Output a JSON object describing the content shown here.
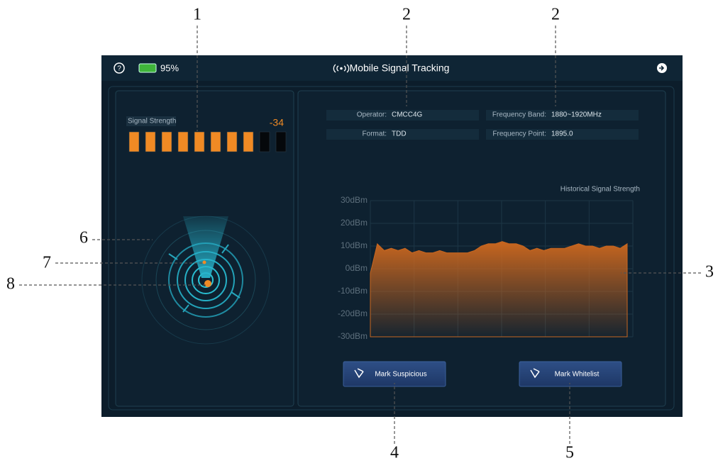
{
  "callouts": [
    "1",
    "2",
    "2",
    "6",
    "7",
    "8",
    "3",
    "4",
    "5"
  ],
  "header": {
    "battery": "95%",
    "title": "Mobile Signal Tracking"
  },
  "signal": {
    "label": "Signal Strength",
    "value": -34,
    "bars_filled": 8,
    "bars_total": 10
  },
  "info": [
    {
      "label": "Operator:",
      "value": "CMCC4G"
    },
    {
      "label": "Frequency Band:",
      "value": "1880~1920MHz"
    },
    {
      "label": "Format:",
      "value": "TDD"
    },
    {
      "label": "Frequency Point:",
      "value": "1895.0"
    }
  ],
  "chart_data": {
    "type": "area",
    "title": "Historical Signal Strength",
    "values": [
      -2,
      11,
      8,
      9,
      8,
      9,
      7,
      8,
      7,
      7,
      8,
      7,
      7,
      7,
      7,
      8,
      10,
      11,
      11,
      12,
      11,
      11,
      10,
      8,
      9,
      8,
      9,
      9,
      9,
      10,
      11,
      10,
      10,
      9,
      10,
      10,
      9,
      11
    ],
    "color": "#c8661f",
    "ylim": [
      -30,
      30
    ],
    "yticks": [
      {
        "value": 30,
        "label": "30dBm"
      },
      {
        "value": 20,
        "label": "20dBm"
      },
      {
        "value": 10,
        "label": "10dBm"
      },
      {
        "value": 0,
        "label": "0dBm"
      },
      {
        "value": -10,
        "label": "-10dBm"
      },
      {
        "value": -20,
        "label": "-20dBm"
      },
      {
        "value": -30,
        "label": "-30dBm"
      }
    ],
    "grid": true
  },
  "buttons": [
    "Mark Suspicious",
    "Mark Whitelist"
  ]
}
